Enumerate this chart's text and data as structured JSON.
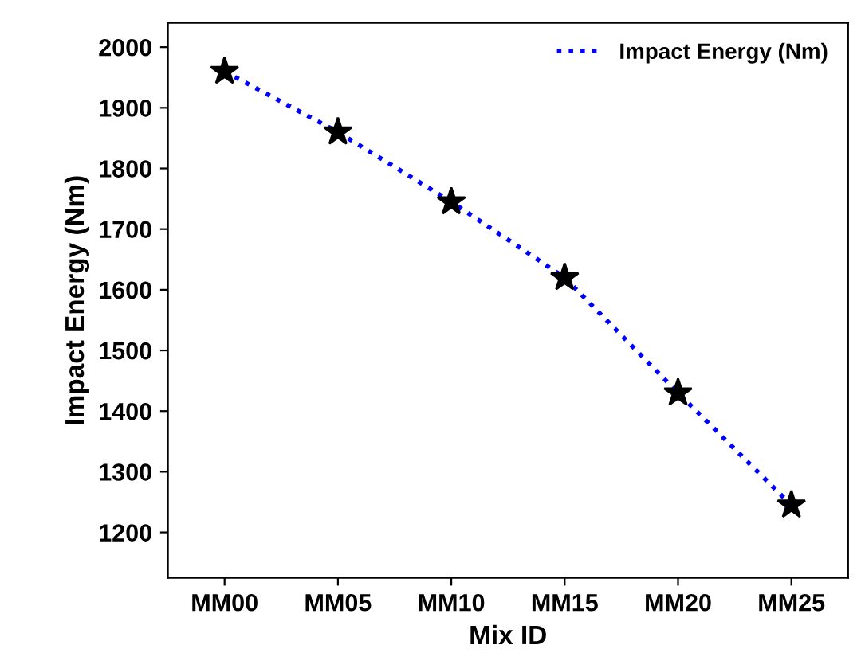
{
  "chart_data": {
    "type": "line",
    "xlabel": "Mix ID",
    "ylabel": "Impact Energy (Nm)",
    "categories": [
      "MM00",
      "MM05",
      "MM10",
      "MM15",
      "MM20",
      "MM25"
    ],
    "series": [
      {
        "name": "Impact Energy (Nm)",
        "color": "#0000ff",
        "values": [
          1960,
          1860,
          1745,
          1620,
          1430,
          1245
        ]
      }
    ],
    "marker": "star",
    "line_style": "dotted",
    "ylim": [
      1125,
      2040
    ],
    "yticks": [
      1200,
      1300,
      1400,
      1500,
      1600,
      1700,
      1800,
      1900,
      2000
    ],
    "grid": false,
    "legend": "top right"
  }
}
